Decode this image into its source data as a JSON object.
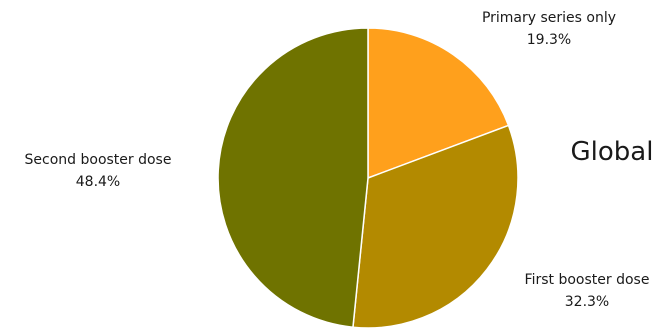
{
  "chart_data": {
    "type": "pie",
    "title": "Global",
    "start_angle_deg": 0,
    "direction": "clockwise",
    "slices": [
      {
        "label": "Primary series only",
        "value": 19.3,
        "value_label": "19.3%",
        "color": "#ffa01c",
        "label_position": "top-right"
      },
      {
        "label": "First booster dose",
        "value": 32.3,
        "value_label": "32.3%",
        "color": "#b38a00",
        "label_position": "bottom-right"
      },
      {
        "label": "Second booster dose",
        "value": 48.4,
        "value_label": "48.4%",
        "color": "#6f7300",
        "label_position": "left"
      }
    ]
  }
}
